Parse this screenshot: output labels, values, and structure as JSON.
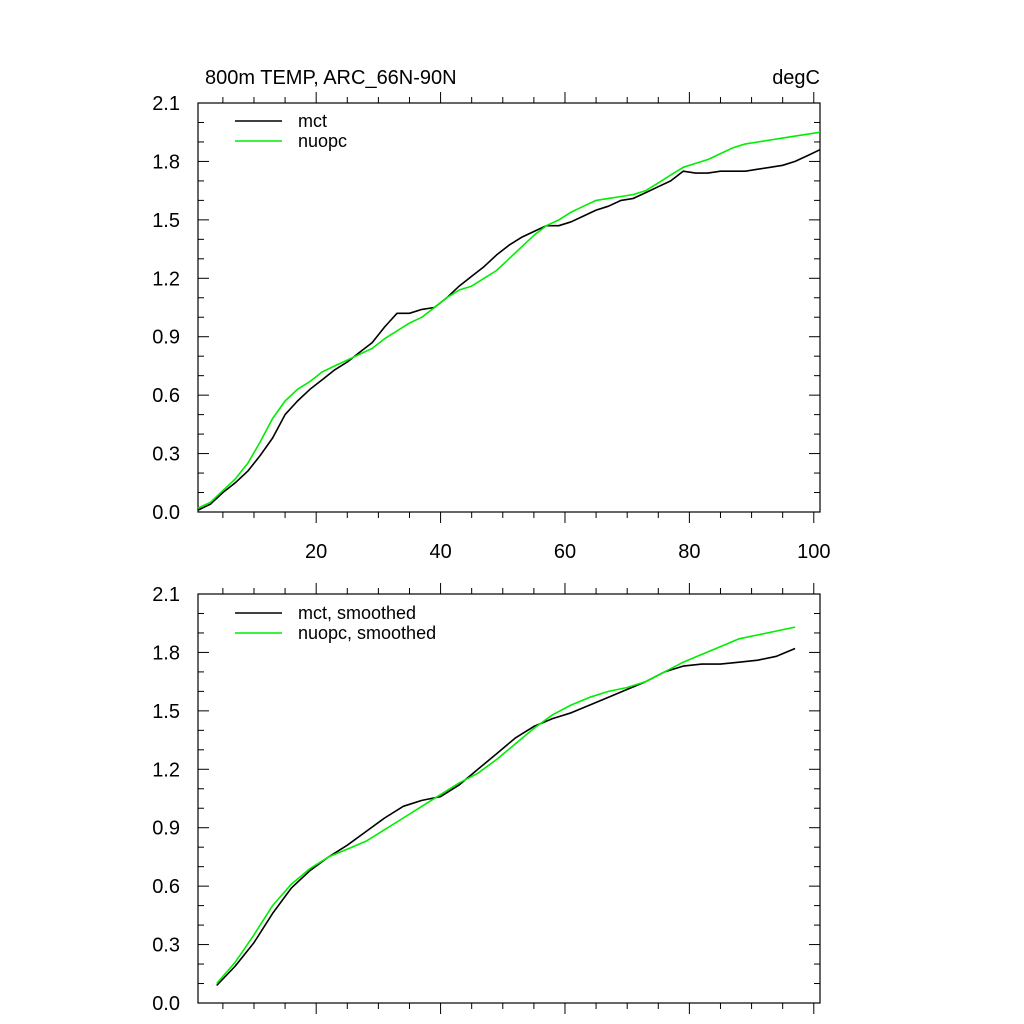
{
  "figure": {
    "title_left": "800m TEMP, ARC_66N-90N",
    "title_right": "degC"
  },
  "colors": {
    "mct": "#000000",
    "nuopc": "#00ee00"
  },
  "chart_data": [
    {
      "type": "line",
      "title": "800m TEMP, ARC_66N-90N",
      "units": "degC",
      "xlim": [
        1,
        101
      ],
      "ylim": [
        0.0,
        2.1
      ],
      "x_major_ticks": [
        20,
        40,
        60,
        80,
        100
      ],
      "x_tick_labels": [
        "20",
        "40",
        "60",
        "80",
        "100"
      ],
      "y_major_ticks": [
        0.0,
        0.3,
        0.6,
        0.9,
        1.2,
        1.5,
        1.8,
        2.1
      ],
      "y_tick_labels": [
        "0.0",
        "0.3",
        "0.6",
        "0.9",
        "1.2",
        "1.5",
        "1.8",
        "2.1"
      ],
      "legend": [
        "mct",
        "nuopc"
      ],
      "legend_position": "top-left",
      "series": [
        {
          "name": "mct",
          "color": "#000000",
          "x": [
            1,
            3,
            5,
            7,
            9,
            11,
            13,
            15,
            17,
            19,
            21,
            23,
            25,
            27,
            29,
            31,
            33,
            35,
            37,
            39,
            41,
            43,
            45,
            47,
            49,
            51,
            53,
            55,
            57,
            59,
            61,
            63,
            65,
            67,
            69,
            71,
            73,
            75,
            77,
            79,
            81,
            83,
            85,
            87,
            89,
            91,
            93,
            95,
            97,
            99,
            101
          ],
          "y": [
            0.01,
            0.04,
            0.1,
            0.15,
            0.21,
            0.29,
            0.38,
            0.5,
            0.57,
            0.63,
            0.68,
            0.73,
            0.77,
            0.82,
            0.87,
            0.95,
            1.02,
            1.02,
            1.04,
            1.05,
            1.1,
            1.16,
            1.21,
            1.26,
            1.32,
            1.37,
            1.41,
            1.44,
            1.47,
            1.47,
            1.49,
            1.52,
            1.55,
            1.57,
            1.6,
            1.61,
            1.64,
            1.67,
            1.7,
            1.75,
            1.74,
            1.74,
            1.75,
            1.75,
            1.75,
            1.76,
            1.77,
            1.78,
            1.8,
            1.83,
            1.86
          ]
        },
        {
          "name": "nuopc",
          "color": "#00ee00",
          "x": [
            1,
            3,
            5,
            7,
            9,
            11,
            13,
            15,
            17,
            19,
            21,
            23,
            25,
            27,
            29,
            31,
            33,
            35,
            37,
            39,
            41,
            43,
            45,
            47,
            49,
            51,
            53,
            55,
            57,
            59,
            61,
            63,
            65,
            67,
            69,
            71,
            73,
            75,
            77,
            79,
            81,
            83,
            85,
            87,
            89,
            91,
            93,
            95,
            97,
            99,
            101
          ],
          "y": [
            0.02,
            0.05,
            0.11,
            0.17,
            0.25,
            0.36,
            0.48,
            0.57,
            0.63,
            0.67,
            0.72,
            0.75,
            0.78,
            0.81,
            0.84,
            0.89,
            0.93,
            0.97,
            1.0,
            1.05,
            1.1,
            1.14,
            1.16,
            1.2,
            1.24,
            1.3,
            1.36,
            1.42,
            1.47,
            1.5,
            1.54,
            1.57,
            1.6,
            1.61,
            1.62,
            1.63,
            1.65,
            1.69,
            1.73,
            1.77,
            1.79,
            1.81,
            1.84,
            1.87,
            1.89,
            1.9,
            1.91,
            1.92,
            1.93,
            1.94,
            1.95
          ]
        }
      ]
    },
    {
      "type": "line",
      "xlim": [
        1,
        101
      ],
      "ylim": [
        0.0,
        2.1
      ],
      "x_major_ticks": [
        20,
        40,
        60,
        80,
        100
      ],
      "x_tick_labels": [],
      "y_major_ticks": [
        0.0,
        0.3,
        0.6,
        0.9,
        1.2,
        1.5,
        1.8,
        2.1
      ],
      "y_tick_labels": [
        "0.0",
        "0.3",
        "0.6",
        "0.9",
        "1.2",
        "1.5",
        "1.8",
        "2.1"
      ],
      "legend": [
        "mct, smoothed",
        "nuopc, smoothed"
      ],
      "legend_position": "top-left",
      "series": [
        {
          "name": "mct, smoothed",
          "color": "#000000",
          "x": [
            4,
            7,
            10,
            13,
            16,
            19,
            22,
            25,
            28,
            31,
            34,
            37,
            40,
            43,
            46,
            49,
            52,
            55,
            58,
            61,
            64,
            67,
            70,
            73,
            76,
            79,
            82,
            85,
            88,
            91,
            94,
            97
          ],
          "y": [
            0.09,
            0.19,
            0.31,
            0.46,
            0.59,
            0.68,
            0.75,
            0.81,
            0.88,
            0.95,
            1.01,
            1.04,
            1.06,
            1.12,
            1.2,
            1.28,
            1.36,
            1.42,
            1.46,
            1.49,
            1.53,
            1.57,
            1.61,
            1.65,
            1.7,
            1.73,
            1.74,
            1.74,
            1.75,
            1.76,
            1.78,
            1.82
          ]
        },
        {
          "name": "nuopc, smoothed",
          "color": "#00ee00",
          "x": [
            4,
            7,
            10,
            13,
            16,
            19,
            22,
            25,
            28,
            31,
            34,
            37,
            40,
            43,
            46,
            49,
            52,
            55,
            58,
            61,
            64,
            67,
            70,
            73,
            76,
            79,
            82,
            85,
            88,
            91,
            94,
            97
          ],
          "y": [
            0.1,
            0.21,
            0.35,
            0.5,
            0.61,
            0.69,
            0.75,
            0.79,
            0.83,
            0.89,
            0.95,
            1.01,
            1.07,
            1.13,
            1.18,
            1.25,
            1.33,
            1.41,
            1.48,
            1.53,
            1.57,
            1.6,
            1.62,
            1.65,
            1.7,
            1.75,
            1.79,
            1.83,
            1.87,
            1.89,
            1.91,
            1.93
          ]
        }
      ]
    }
  ]
}
